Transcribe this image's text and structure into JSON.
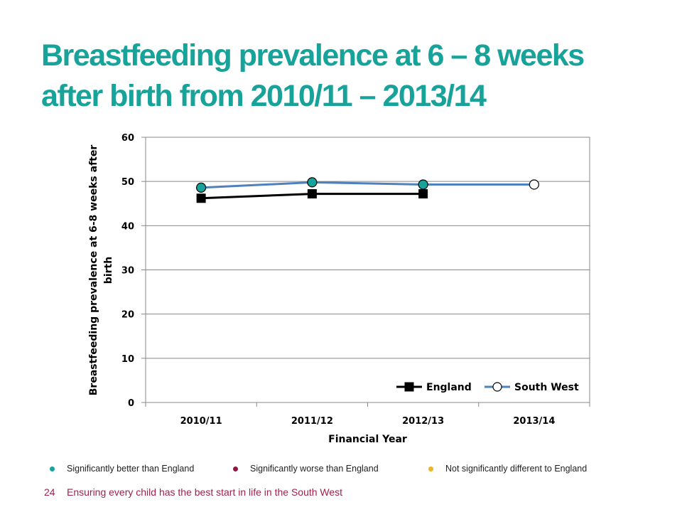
{
  "slide": {
    "title_line1": "Breastfeeding prevalence at 6 – 8 weeks",
    "title_line2": "after birth from 2010/11 – 2013/14",
    "title_color": "#17a39a"
  },
  "chart_data": {
    "type": "line",
    "categories": [
      "2010/11",
      "2011/12",
      "2012/13",
      "2013/14"
    ],
    "xlabel": "Financial Year",
    "ylabel_lines": [
      "Breastfeeding prevalence at 6-8 weeks after",
      "birth"
    ],
    "ylim": [
      0,
      60
    ],
    "yticks": [
      0,
      10,
      20,
      30,
      40,
      50,
      60
    ],
    "grid": true,
    "legend_position": "bottom-right",
    "series": [
      {
        "name": "England",
        "values": [
          46.2,
          47.2,
          47.2,
          null
        ],
        "color": "#000000",
        "marker": "square",
        "marker_fill": "#000000",
        "point_significance": [
          null,
          null,
          null,
          null
        ]
      },
      {
        "name": "South West",
        "values": [
          48.6,
          49.8,
          49.3,
          49.3
        ],
        "color": "#4f81bd",
        "marker": "circle",
        "marker_fill": "#ffffff",
        "point_significance": [
          "better",
          "better",
          "better",
          null
        ]
      }
    ]
  },
  "significance_legend": [
    {
      "key": "better",
      "label": "Significantly better than England",
      "color": "#17a39a"
    },
    {
      "key": "worse",
      "label": "Significantly worse than England",
      "color": "#8b1a3f"
    },
    {
      "key": "similar",
      "label": "Not significantly different to England",
      "color": "#f0b323"
    }
  ],
  "footer": {
    "page_number": "24",
    "text": "Ensuring every child has the best start in life in the South West"
  }
}
